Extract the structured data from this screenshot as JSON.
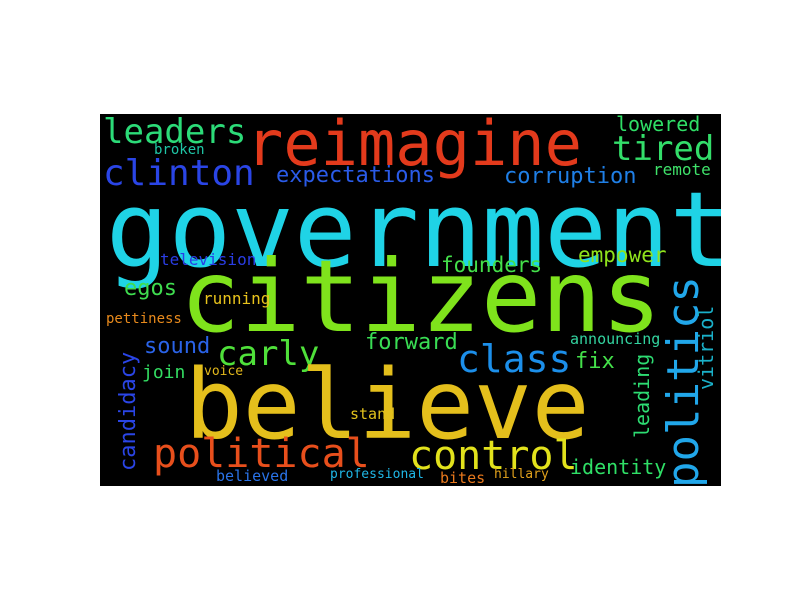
{
  "words": {
    "government": {
      "text": "government",
      "color": "#1fd3e6"
    },
    "citizens": {
      "text": "citizens",
      "color": "#7fe31c"
    },
    "believe": {
      "text": "believe",
      "color": "#e4bf1c"
    },
    "reimagine": {
      "text": "reimagine",
      "color": "#e33a1c"
    },
    "politics": {
      "text": "politics",
      "color": "#21a7ea"
    },
    "political": {
      "text": "political",
      "color": "#e84f1c"
    },
    "control": {
      "text": "control",
      "color": "#e2e21c"
    },
    "leaders": {
      "text": "leaders",
      "color": "#2cdb78"
    },
    "clinton": {
      "text": "clinton",
      "color": "#2a45e6"
    },
    "tired": {
      "text": "tired",
      "color": "#33de6a"
    },
    "class": {
      "text": "class",
      "color": "#1c8fea"
    },
    "carly": {
      "text": "carly",
      "color": "#4fe03a"
    },
    "expectations": {
      "text": "expectations",
      "color": "#2a5be8"
    },
    "corruption": {
      "text": "corruption",
      "color": "#1f7fe6"
    },
    "lowered": {
      "text": "lowered",
      "color": "#2fdf66"
    },
    "founders": {
      "text": "founders",
      "color": "#44e04a"
    },
    "empower": {
      "text": "empower",
      "color": "#8fe21c"
    },
    "egos": {
      "text": "egos",
      "color": "#3fdd4f"
    },
    "forward": {
      "text": "forward",
      "color": "#39dd54"
    },
    "fix": {
      "text": "fix",
      "color": "#44e04a"
    },
    "sound": {
      "text": "sound",
      "color": "#2a63e8"
    },
    "candidacy": {
      "text": "candidacy",
      "color": "#2a45e6"
    },
    "leading": {
      "text": "leading",
      "color": "#2ddc72"
    },
    "vitriol": {
      "text": "vitriol",
      "color": "#1ab0c8"
    },
    "identity": {
      "text": "identity",
      "color": "#2fdf66"
    },
    "join": {
      "text": "join",
      "color": "#33dd62"
    },
    "broken": {
      "text": "broken",
      "color": "#1fc6a6"
    },
    "remote": {
      "text": "remote",
      "color": "#3fe26a"
    },
    "television": {
      "text": "television",
      "color": "#2a3de4"
    },
    "running": {
      "text": "running",
      "color": "#e8c31c"
    },
    "pettiness": {
      "text": "pettiness",
      "color": "#e88a1c"
    },
    "announcing": {
      "text": "announcing",
      "color": "#33d4a0"
    },
    "voice": {
      "text": "voice",
      "color": "#e2b81c"
    },
    "stand": {
      "text": "stand",
      "color": "#e2c21c"
    },
    "professional": {
      "text": "professional",
      "color": "#1fb7e6"
    },
    "hillary": {
      "text": "hillary",
      "color": "#e2a21c"
    },
    "believed": {
      "text": "believed",
      "color": "#2a73e8"
    },
    "bites": {
      "text": "bites",
      "color": "#e8781c"
    }
  }
}
